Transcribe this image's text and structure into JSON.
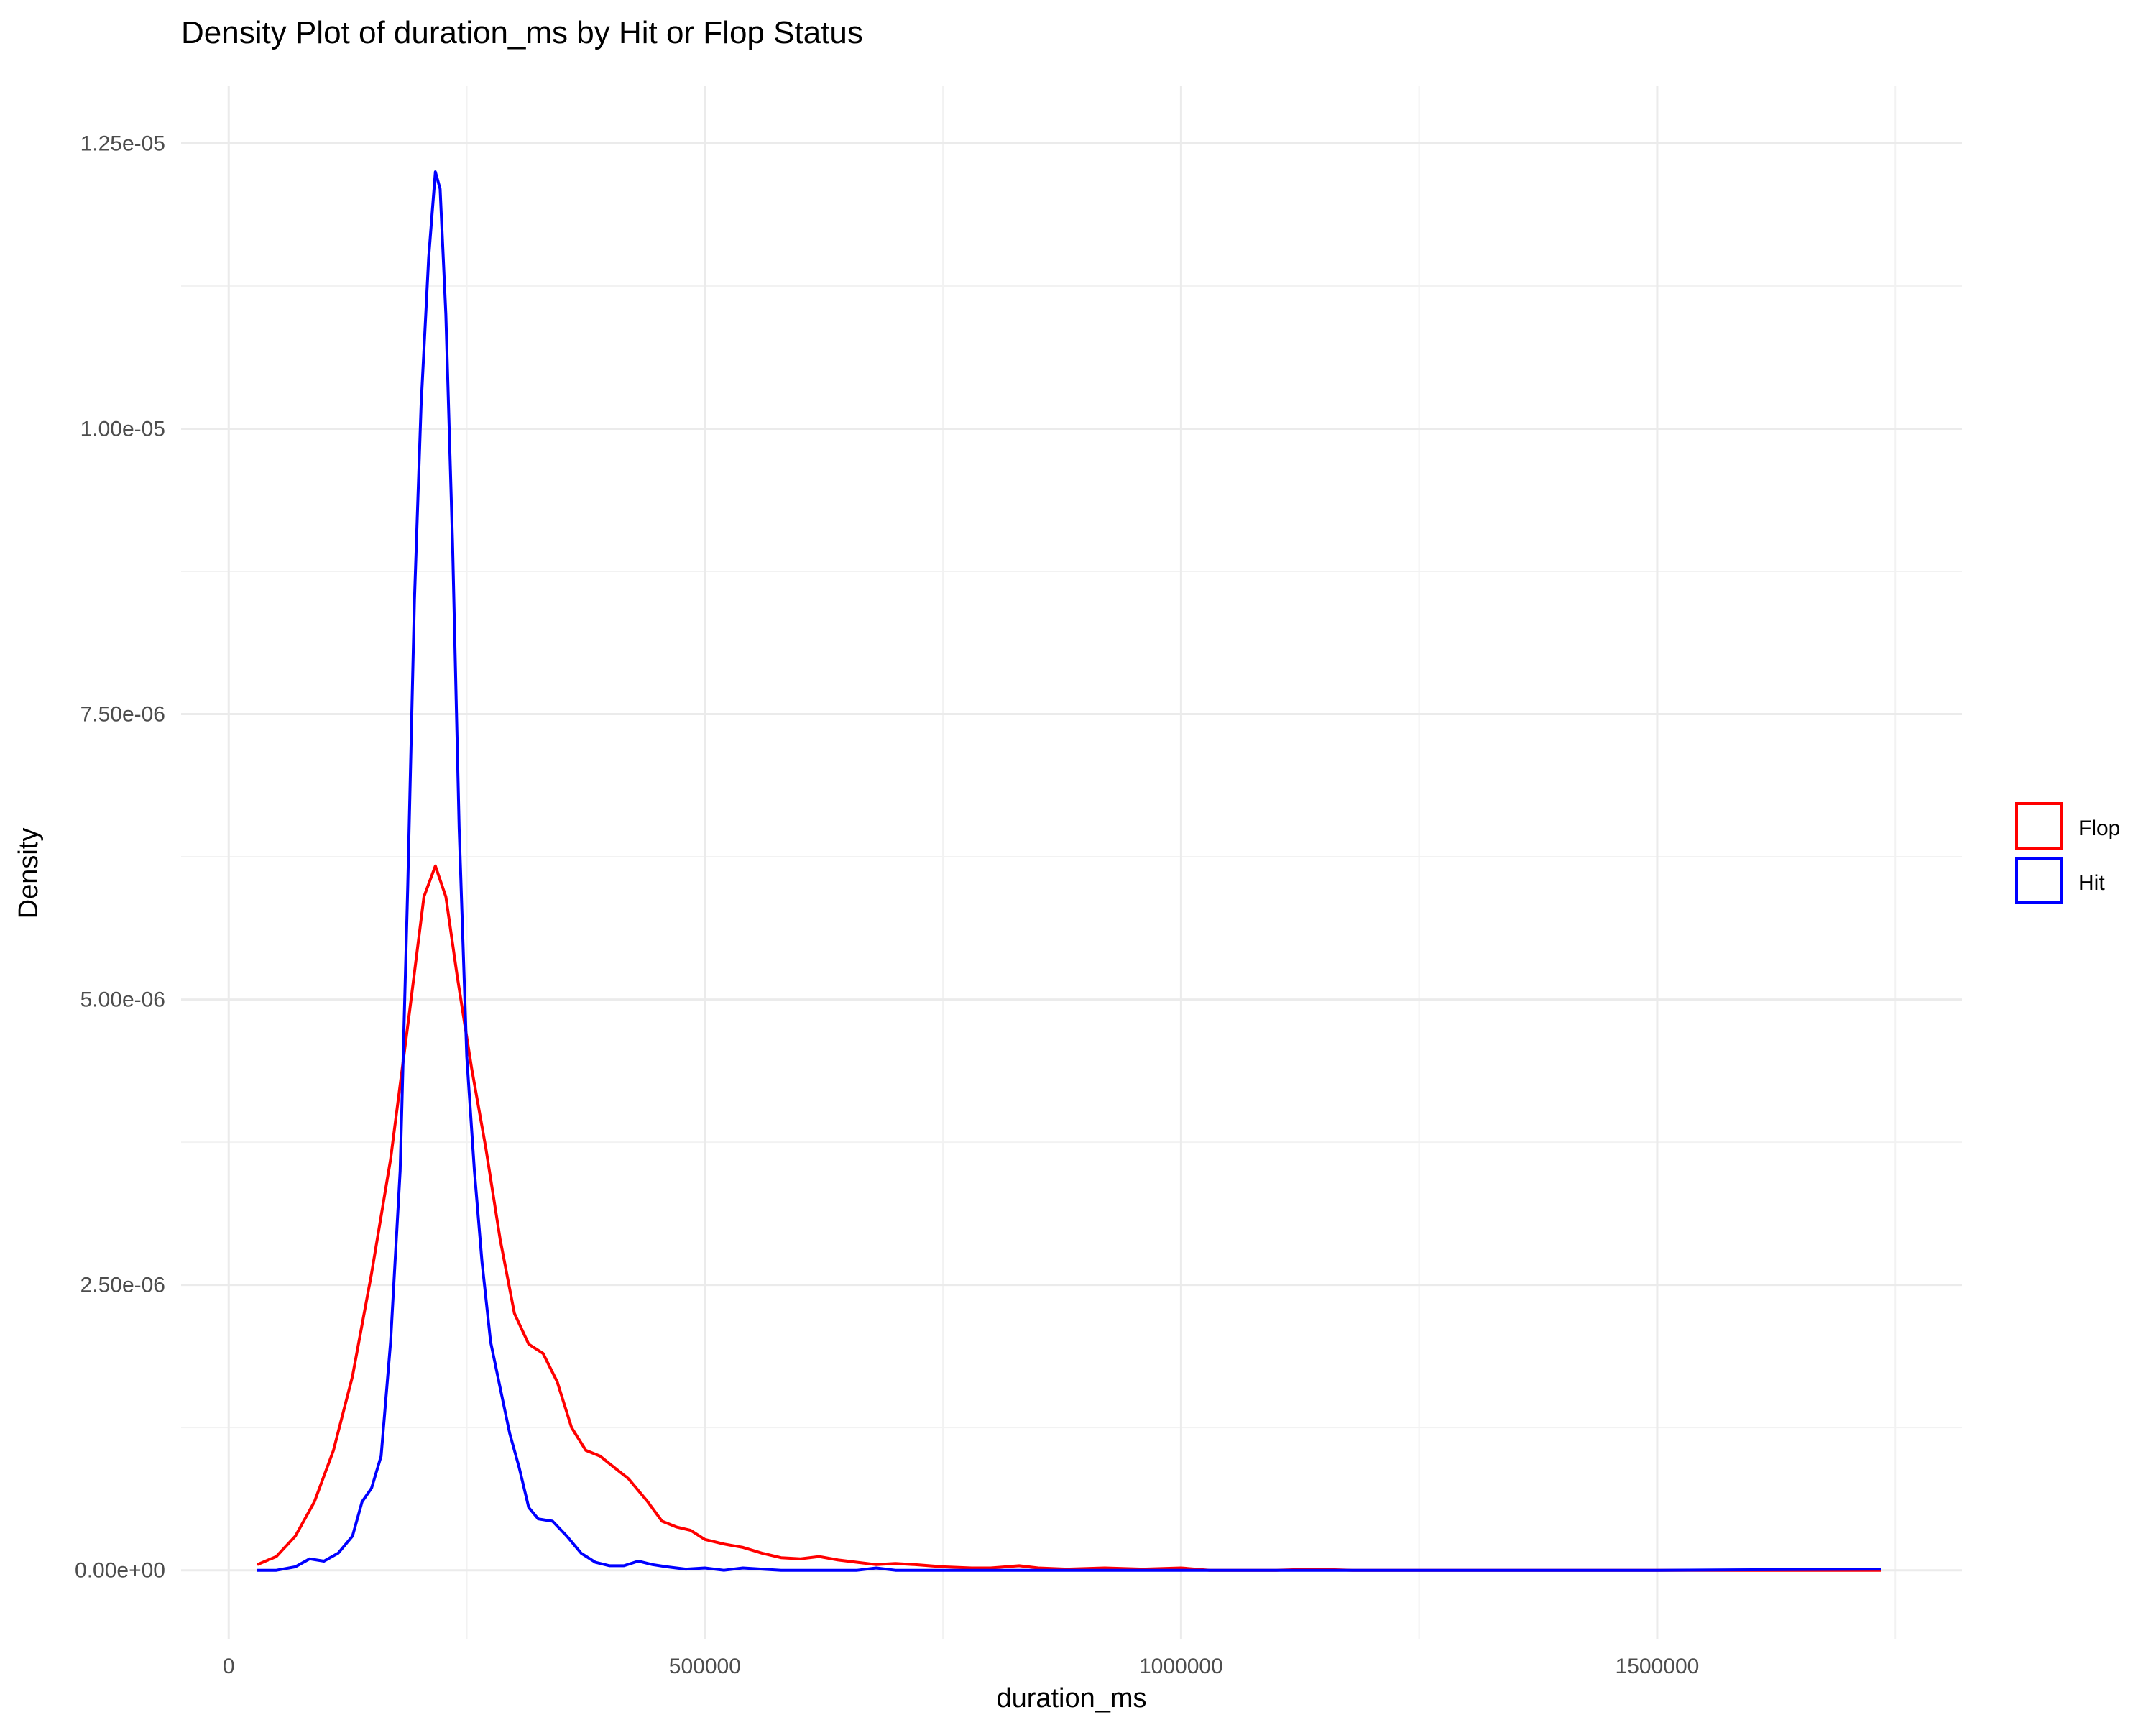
{
  "chart_data": {
    "type": "line",
    "title": "Density Plot of duration_ms by Hit or Flop Status",
    "xlabel": "duration_ms",
    "ylabel": "Density",
    "xlim": [
      -50000,
      1820000
    ],
    "ylim": [
      -6e-07,
      1.3e-05
    ],
    "x_ticks": [
      0,
      500000,
      1000000,
      1500000
    ],
    "x_tick_labels": [
      "0",
      "500000",
      "1000000",
      "1500000"
    ],
    "y_ticks": [
      0,
      2.5e-06,
      5e-06,
      7.5e-06,
      1e-05,
      1.25e-05
    ],
    "y_tick_labels": [
      "0.00e+00",
      "2.50e-06",
      "5.00e-06",
      "7.50e-06",
      "1.00e-05",
      "1.25e-05"
    ],
    "grid": true,
    "legend": {
      "position": "right"
    },
    "series": [
      {
        "name": "Flop",
        "color": "#ff0000",
        "points": [
          [
            30000,
            5e-08
          ],
          [
            50000,
            1.2e-07
          ],
          [
            70000,
            3e-07
          ],
          [
            90000,
            6e-07
          ],
          [
            110000,
            1.05e-06
          ],
          [
            130000,
            1.7e-06
          ],
          [
            150000,
            2.6e-06
          ],
          [
            170000,
            3.6e-06
          ],
          [
            190000,
            4.9e-06
          ],
          [
            205000,
            5.9e-06
          ],
          [
            217000,
            6.17e-06
          ],
          [
            228000,
            5.9e-06
          ],
          [
            240000,
            5.2e-06
          ],
          [
            255000,
            4.4e-06
          ],
          [
            270000,
            3.7e-06
          ],
          [
            285000,
            2.9e-06
          ],
          [
            300000,
            2.25e-06
          ],
          [
            315000,
            1.98e-06
          ],
          [
            330000,
            1.9e-06
          ],
          [
            345000,
            1.65e-06
          ],
          [
            360000,
            1.25e-06
          ],
          [
            375000,
            1.05e-06
          ],
          [
            390000,
            1e-06
          ],
          [
            405000,
            9e-07
          ],
          [
            420000,
            8e-07
          ],
          [
            440000,
            6e-07
          ],
          [
            455000,
            4.3e-07
          ],
          [
            470000,
            3.8e-07
          ],
          [
            485000,
            3.5e-07
          ],
          [
            500000,
            2.7e-07
          ],
          [
            520000,
            2.3e-07
          ],
          [
            540000,
            2e-07
          ],
          [
            560000,
            1.5e-07
          ],
          [
            580000,
            1.1e-07
          ],
          [
            600000,
            1e-07
          ],
          [
            620000,
            1.2e-07
          ],
          [
            640000,
            9e-08
          ],
          [
            660000,
            7e-08
          ],
          [
            680000,
            5e-08
          ],
          [
            700000,
            6e-08
          ],
          [
            720000,
            5e-08
          ],
          [
            750000,
            3e-08
          ],
          [
            780000,
            2e-08
          ],
          [
            800000,
            2e-08
          ],
          [
            830000,
            4e-08
          ],
          [
            850000,
            2e-08
          ],
          [
            880000,
            1e-08
          ],
          [
            920000,
            2e-08
          ],
          [
            960000,
            1e-08
          ],
          [
            1000000,
            2e-08
          ],
          [
            1030000,
            0
          ],
          [
            1100000,
            0
          ],
          [
            1140000,
            1e-08
          ],
          [
            1180000,
            0
          ],
          [
            1300000,
            0
          ],
          [
            1500000,
            0
          ],
          [
            1735000,
            0
          ]
        ]
      },
      {
        "name": "Hit",
        "color": "#0000ff",
        "points": [
          [
            30000,
            0
          ],
          [
            50000,
            0
          ],
          [
            70000,
            3e-08
          ],
          [
            85000,
            1e-07
          ],
          [
            100000,
            8e-08
          ],
          [
            115000,
            1.5e-07
          ],
          [
            130000,
            3e-07
          ],
          [
            140000,
            6e-07
          ],
          [
            150000,
            7.2e-07
          ],
          [
            160000,
            1e-06
          ],
          [
            170000,
            2e-06
          ],
          [
            180000,
            3.5e-06
          ],
          [
            188000,
            6e-06
          ],
          [
            195000,
            8.5e-06
          ],
          [
            202000,
            1.02e-05
          ],
          [
            210000,
            1.15e-05
          ],
          [
            217000,
            1.225e-05
          ],
          [
            222000,
            1.21e-05
          ],
          [
            228000,
            1.1e-05
          ],
          [
            235000,
            9e-06
          ],
          [
            242000,
            6.5e-06
          ],
          [
            250000,
            4.5e-06
          ],
          [
            258000,
            3.5e-06
          ],
          [
            266000,
            2.7e-06
          ],
          [
            275000,
            2e-06
          ],
          [
            285000,
            1.6e-06
          ],
          [
            295000,
            1.2e-06
          ],
          [
            305000,
            9e-07
          ],
          [
            315000,
            5.5e-07
          ],
          [
            325000,
            4.5e-07
          ],
          [
            340000,
            4.3e-07
          ],
          [
            355000,
            3e-07
          ],
          [
            370000,
            1.5e-07
          ],
          [
            385000,
            7e-08
          ],
          [
            400000,
            4e-08
          ],
          [
            415000,
            4e-08
          ],
          [
            430000,
            8e-08
          ],
          [
            445000,
            5e-08
          ],
          [
            460000,
            3e-08
          ],
          [
            480000,
            1e-08
          ],
          [
            500000,
            2e-08
          ],
          [
            520000,
            0
          ],
          [
            540000,
            2e-08
          ],
          [
            560000,
            1e-08
          ],
          [
            580000,
            0
          ],
          [
            660000,
            0
          ],
          [
            680000,
            2e-08
          ],
          [
            700000,
            0
          ],
          [
            800000,
            0
          ],
          [
            1000000,
            0
          ],
          [
            1200000,
            0
          ],
          [
            1500000,
            0
          ],
          [
            1735000,
            1e-08
          ]
        ]
      }
    ]
  }
}
